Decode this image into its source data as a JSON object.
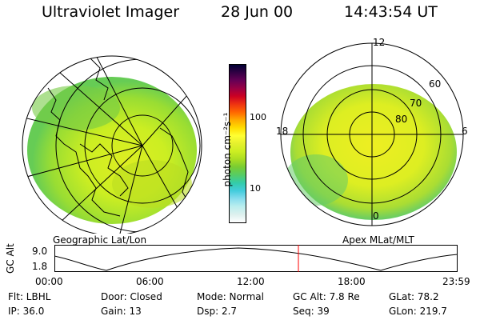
{
  "header": {
    "title": "Ultraviolet Imager",
    "date": "28 Jun 00",
    "time": "14:43:54 UT"
  },
  "geo_panel": {
    "caption": "Geographic Lat/Lon"
  },
  "mag_panel": {
    "caption": "Apex MLat/MLT",
    "mlt_labels": [
      "12",
      "18",
      "6",
      "0"
    ],
    "mlat_labels": [
      "60",
      "70",
      "80"
    ]
  },
  "colorbar": {
    "label": "photon cm⁻²s⁻¹",
    "ticks": [
      "100",
      "10"
    ],
    "colors": [
      "#000033",
      "#330044",
      "#660055",
      "#990044",
      "#cc0022",
      "#ee3311",
      "#ff6600",
      "#ffaa00",
      "#ffdd00",
      "#ffff33",
      "#e5f02e",
      "#ccee22",
      "#aadd22",
      "#77cc33",
      "#55cc66",
      "#33ccaa",
      "#44ccdd",
      "#88ddee",
      "#bbeeee",
      "#ddf0ee",
      "#ffffff"
    ]
  },
  "altitude_plot": {
    "ylabel": "GC Alt",
    "yticks": [
      "9.0",
      "1.8"
    ],
    "xticks": [
      "00:00",
      "06:00",
      "12:00",
      "18:00",
      "23:59"
    ],
    "current_time_color": "#ff0000"
  },
  "info": {
    "filter": "Flt: LBHL",
    "ip": "IP: 36.0",
    "door": "Door: Closed",
    "gain": "Gain: 13",
    "mode": "Mode: Normal",
    "dsp": "Dsp:     2.7",
    "gc_alt": "GC Alt: 7.8 Re",
    "seq": "Seq: 39",
    "glat": "GLat:    78.2",
    "glon": "GLon: 219.7"
  }
}
